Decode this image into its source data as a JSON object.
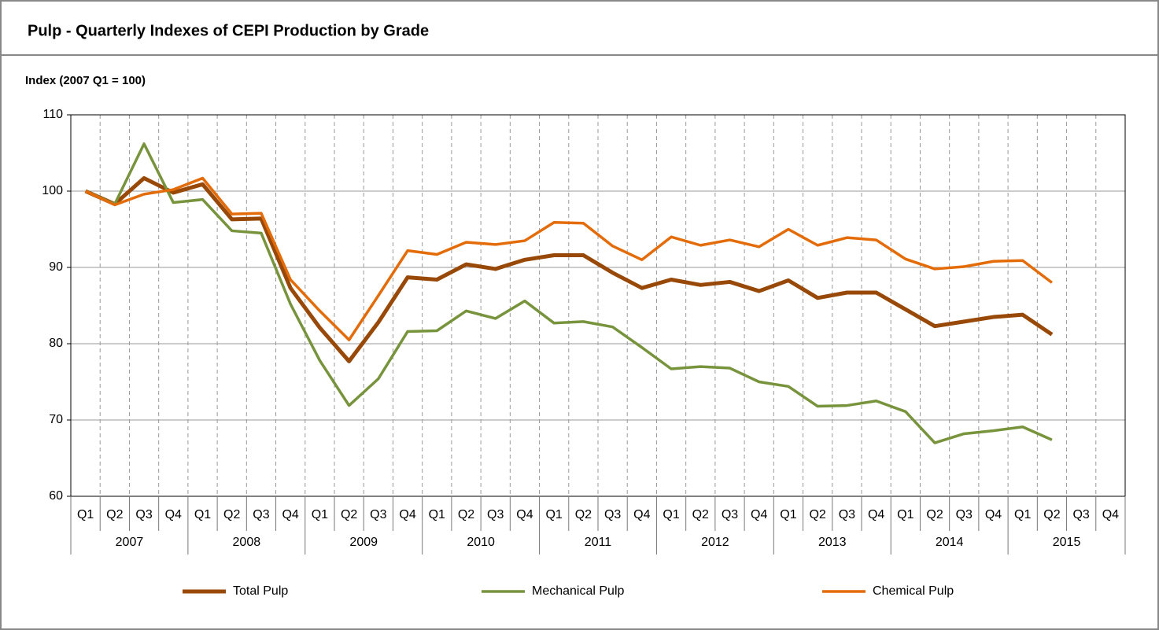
{
  "chart_data": {
    "type": "line",
    "title": "Pulp - Quarterly Indexes of CEPI Production by Grade",
    "y_label": "Index (2007 Q1 = 100)",
    "categories": [
      "Q1",
      "Q2",
      "Q3",
      "Q4",
      "Q1",
      "Q2",
      "Q3",
      "Q4",
      "Q1",
      "Q2",
      "Q3",
      "Q4",
      "Q1",
      "Q2",
      "Q3",
      "Q4",
      "Q1",
      "Q2",
      "Q3",
      "Q4",
      "Q1",
      "Q2",
      "Q3",
      "Q4",
      "Q1",
      "Q2",
      "Q3",
      "Q4",
      "Q1",
      "Q2",
      "Q3",
      "Q4",
      "Q1",
      "Q2",
      "Q3",
      "Q4"
    ],
    "years": [
      "2007",
      "2008",
      "2009",
      "2010",
      "2011",
      "2012",
      "2013",
      "2014",
      "2015"
    ],
    "series": [
      {
        "name": "Total Pulp",
        "color": "#984807",
        "values": [
          100,
          98.3,
          101.7,
          99.8,
          100.9,
          96.3,
          96.4,
          87.3,
          82.1,
          77.7,
          82.8,
          88.7,
          88.4,
          90.4,
          89.8,
          91.0,
          91.6,
          91.6,
          89.3,
          87.3,
          88.4,
          87.7,
          88.1,
          86.9,
          88.3,
          86.0,
          86.7,
          86.7,
          84.5,
          82.3,
          82.9,
          83.5,
          83.8,
          81.2,
          null,
          null
        ]
      },
      {
        "name": "Mechanical Pulp",
        "color": "#77933c",
        "values": [
          100,
          98.3,
          106.2,
          98.5,
          98.9,
          94.8,
          94.5,
          85.2,
          77.8,
          71.9,
          75.4,
          81.6,
          81.7,
          84.3,
          83.3,
          85.6,
          82.7,
          82.9,
          82.2,
          79.5,
          76.7,
          77.0,
          76.8,
          75.0,
          74.4,
          71.8,
          71.9,
          72.5,
          71.1,
          67.0,
          68.2,
          68.6,
          69.1,
          67.4,
          null,
          null
        ]
      },
      {
        "name": "Chemical Pulp",
        "color": "#e36c09",
        "values": [
          100,
          98.2,
          99.6,
          100.2,
          101.7,
          97.0,
          97.1,
          88.4,
          84.3,
          80.5,
          86.3,
          92.2,
          91.7,
          93.3,
          93.0,
          93.5,
          95.9,
          95.8,
          92.8,
          91.0,
          94.0,
          92.9,
          93.6,
          92.7,
          95.0,
          92.9,
          93.9,
          93.6,
          91.1,
          89.8,
          90.1,
          90.8,
          90.9,
          88.0,
          null,
          null
        ]
      }
    ],
    "ylim": [
      60,
      110
    ],
    "yticks": [
      60,
      70,
      80,
      90,
      100,
      110
    ],
    "grid": true
  }
}
